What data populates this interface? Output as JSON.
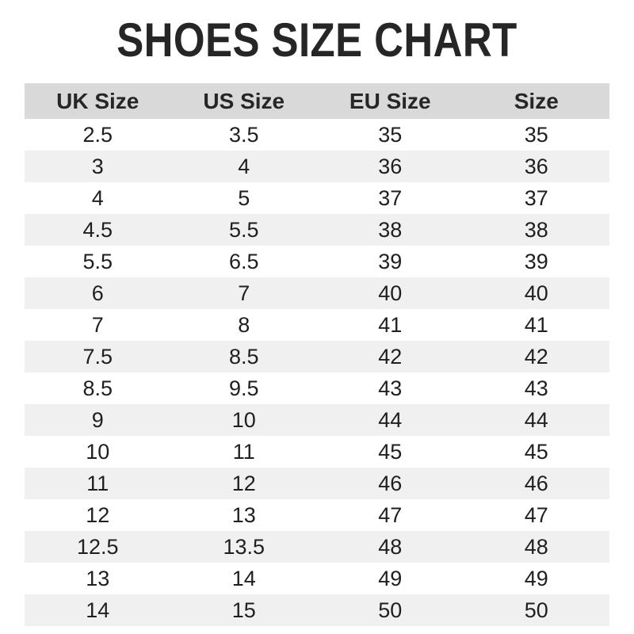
{
  "title": "SHOES SIZE CHART",
  "colors": {
    "page_bg": "#ffffff",
    "header_bg": "#d9d9d9",
    "stripe_bg": "#f0f0f0",
    "text": "#1f1f1f",
    "title": "#262626"
  },
  "chart_data": {
    "type": "table",
    "title": "SHOES SIZE CHART",
    "columns": [
      "UK Size",
      "US Size",
      "EU Size",
      "Size"
    ],
    "rows": [
      [
        "2.5",
        "3.5",
        "35",
        "35"
      ],
      [
        "3",
        "4",
        "36",
        "36"
      ],
      [
        "4",
        "5",
        "37",
        "37"
      ],
      [
        "4.5",
        "5.5",
        "38",
        "38"
      ],
      [
        "5.5",
        "6.5",
        "39",
        "39"
      ],
      [
        "6",
        "7",
        "40",
        "40"
      ],
      [
        "7",
        "8",
        "41",
        "41"
      ],
      [
        "7.5",
        "8.5",
        "42",
        "42"
      ],
      [
        "8.5",
        "9.5",
        "43",
        "43"
      ],
      [
        "9",
        "10",
        "44",
        "44"
      ],
      [
        "10",
        "11",
        "45",
        "45"
      ],
      [
        "11",
        "12",
        "46",
        "46"
      ],
      [
        "12",
        "13",
        "47",
        "47"
      ],
      [
        "12.5",
        "13.5",
        "48",
        "48"
      ],
      [
        "13",
        "14",
        "49",
        "49"
      ],
      [
        "14",
        "15",
        "50",
        "50"
      ]
    ],
    "layout": {
      "stripe_pattern": "even data rows shaded, starting with second row",
      "alignment": "center",
      "grid": "off"
    }
  }
}
